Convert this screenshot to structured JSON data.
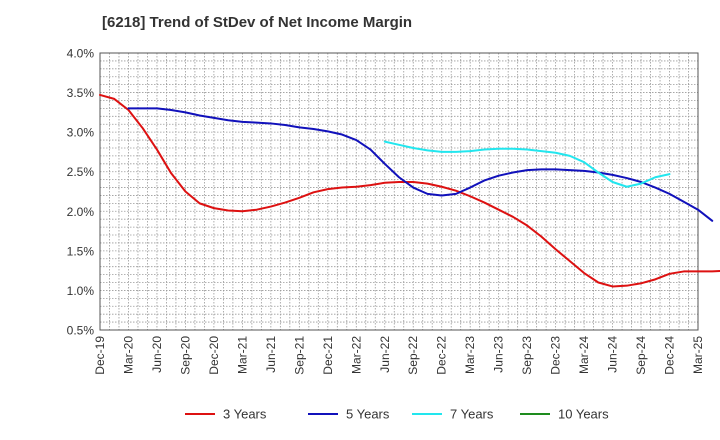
{
  "chart_data": {
    "type": "line",
    "title": "[6218]  Trend of StDev of Net Income Margin",
    "xlabel": "",
    "ylabel": "",
    "ylim": [
      0.5,
      4.0
    ],
    "y_ticks": [
      "0.5%",
      "1.0%",
      "1.5%",
      "2.0%",
      "2.5%",
      "3.0%",
      "3.5%",
      "4.0%"
    ],
    "y_tick_values": [
      0.5,
      1.0,
      1.5,
      2.0,
      2.5,
      3.0,
      3.5,
      4.0
    ],
    "x_ticks": [
      "Dec-19",
      "Mar-20",
      "Jun-20",
      "Sep-20",
      "Dec-20",
      "Mar-21",
      "Jun-21",
      "Sep-21",
      "Dec-21",
      "Mar-22",
      "Jun-22",
      "Sep-22",
      "Dec-22",
      "Mar-23",
      "Jun-23",
      "Sep-23",
      "Dec-23",
      "Mar-24",
      "Jun-24",
      "Sep-24",
      "Dec-24",
      "Mar-25"
    ],
    "grid": true,
    "legend_position": "bottom",
    "series": [
      {
        "name": "3 Years",
        "color": "#dd1111",
        "values": [
          3.47,
          3.42,
          3.28,
          3.05,
          2.78,
          2.48,
          2.25,
          2.1,
          2.04,
          2.01,
          2.0,
          2.02,
          2.06,
          2.11,
          2.17,
          2.24,
          2.28,
          2.3,
          2.31,
          2.33,
          2.36,
          2.37,
          2.37,
          2.35,
          2.31,
          2.26,
          2.19,
          2.11,
          2.02,
          1.93,
          1.82,
          1.68,
          1.52,
          1.37,
          1.22,
          1.1,
          1.05,
          1.06,
          1.09,
          1.14,
          1.21,
          1.24,
          1.24,
          1.24,
          1.25,
          1.27,
          1.31,
          1.37,
          1.43,
          1.5
        ]
      },
      {
        "name": "5 Years",
        "color": "#1111bb",
        "values": [
          null,
          null,
          3.3,
          3.3,
          3.3,
          3.28,
          3.25,
          3.21,
          3.18,
          3.15,
          3.13,
          3.12,
          3.11,
          3.09,
          3.06,
          3.04,
          3.01,
          2.97,
          2.9,
          2.78,
          2.6,
          2.43,
          2.3,
          2.22,
          2.2,
          2.22,
          2.3,
          2.39,
          2.45,
          2.49,
          2.52,
          2.53,
          2.53,
          2.52,
          2.51,
          2.49,
          2.46,
          2.42,
          2.37,
          2.3,
          2.22,
          2.12,
          2.02,
          1.88
        ]
      },
      {
        "name": "7 Years",
        "color": "#22e6ee",
        "values": [
          null,
          null,
          null,
          null,
          null,
          null,
          null,
          null,
          null,
          null,
          null,
          null,
          null,
          null,
          null,
          null,
          null,
          null,
          null,
          null,
          2.88,
          2.84,
          2.8,
          2.77,
          2.75,
          2.75,
          2.76,
          2.78,
          2.79,
          2.79,
          2.78,
          2.76,
          2.74,
          2.7,
          2.62,
          2.49,
          2.37,
          2.31,
          2.35,
          2.43,
          2.47
        ]
      },
      {
        "name": "10 Years",
        "color": "#1e8c1e",
        "values": []
      }
    ]
  }
}
